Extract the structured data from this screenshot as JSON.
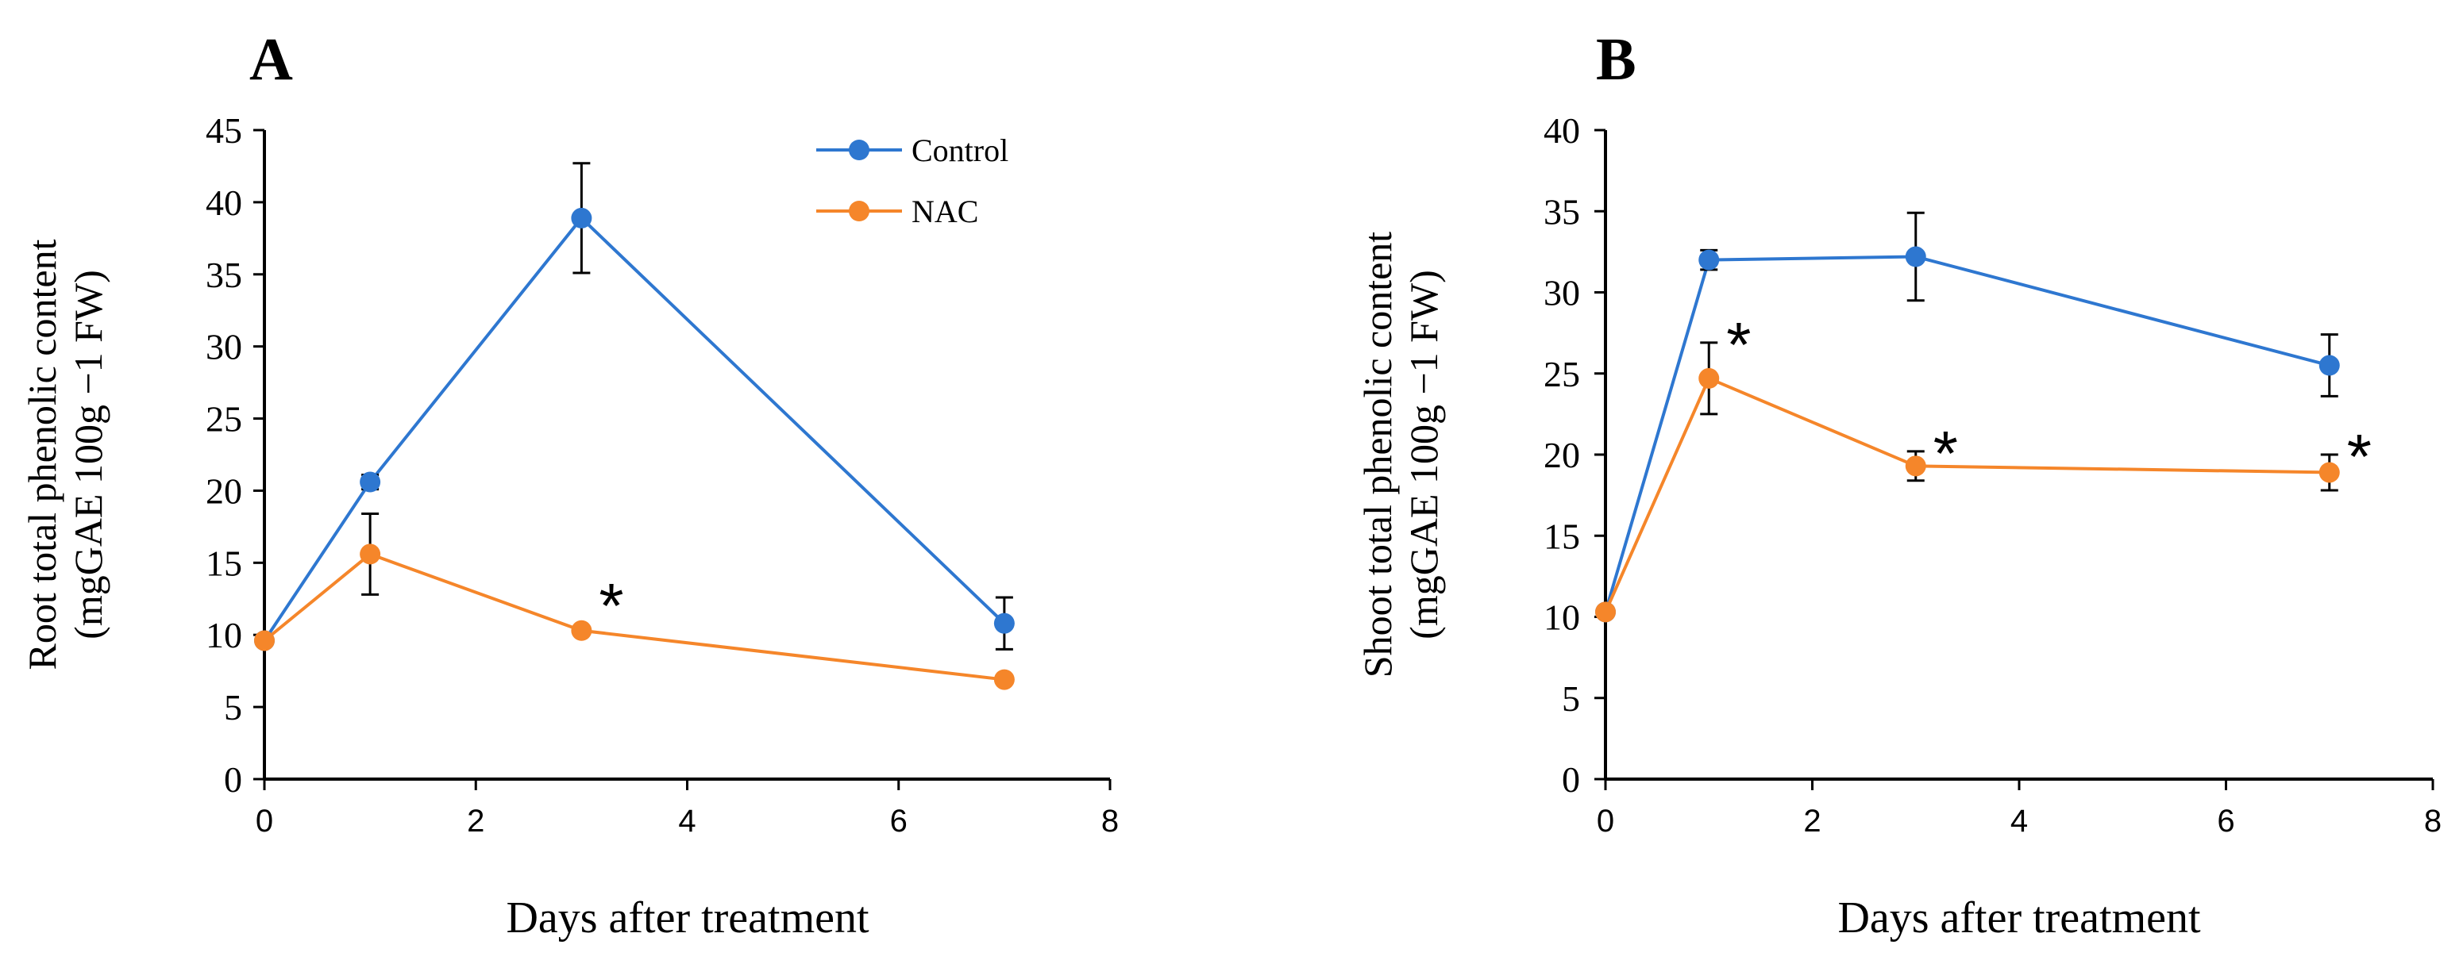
{
  "chart_data": [
    {
      "type": "line",
      "panel_label": "A",
      "x": [
        0,
        1,
        3,
        7
      ],
      "xlim": [
        0,
        8
      ],
      "xticks": [
        0,
        2,
        4,
        6,
        8
      ],
      "ylim": [
        0,
        45
      ],
      "yticks": [
        0,
        5,
        10,
        15,
        20,
        25,
        30,
        35,
        40,
        45
      ],
      "xlabel": "Days after treatment",
      "ylabel": [
        "Root total phenolic content",
        "(mgGAE 100g −1 FW)"
      ],
      "legend": "top-right",
      "series": [
        {
          "name": "Control",
          "color": "#2E77D0",
          "values": [
            9.6,
            20.6,
            38.9,
            10.8
          ],
          "errors": [
            0,
            0.5,
            3.8,
            1.8
          ]
        },
        {
          "name": "NAC",
          "color": "#F5862A",
          "values": [
            9.6,
            15.6,
            10.3,
            6.9
          ],
          "errors": [
            0,
            2.8,
            0,
            0
          ]
        }
      ],
      "significance": [
        {
          "series": "NAC",
          "x": 3,
          "label": "*"
        }
      ]
    },
    {
      "type": "line",
      "panel_label": "B",
      "x": [
        0,
        1,
        3,
        7
      ],
      "xlim": [
        0,
        8
      ],
      "xticks": [
        0,
        2,
        4,
        6,
        8
      ],
      "ylim": [
        0,
        40
      ],
      "yticks": [
        0,
        5,
        10,
        15,
        20,
        25,
        30,
        35,
        40
      ],
      "xlabel": "Days after treatment",
      "ylabel": [
        "Shoot total phenolic content",
        "(mgGAE 100g −1 FW)"
      ],
      "legend": "none",
      "series": [
        {
          "name": "Control",
          "color": "#2E77D0",
          "values": [
            10.3,
            32.0,
            32.2,
            25.5
          ],
          "errors": [
            0,
            0.6,
            2.7,
            1.9
          ]
        },
        {
          "name": "NAC",
          "color": "#F5862A",
          "values": [
            10.3,
            24.7,
            19.3,
            18.9
          ],
          "errors": [
            0,
            2.2,
            0.9,
            1.1
          ]
        }
      ],
      "significance": [
        {
          "series": "NAC",
          "x": 1,
          "label": "*"
        },
        {
          "series": "NAC",
          "x": 3,
          "label": "*"
        },
        {
          "series": "NAC",
          "x": 7,
          "label": "*"
        }
      ]
    }
  ]
}
